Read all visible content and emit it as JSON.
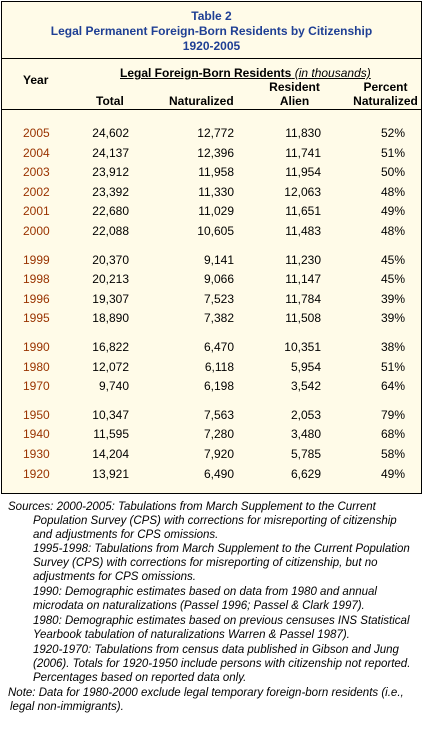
{
  "header": {
    "label": "Table 2",
    "title": "Legal Permanent Foreign-Born Residents by Citizenship",
    "years": "1920-2005"
  },
  "columns": {
    "year": "Year",
    "span_title": "Legal Foreign-Born Residents",
    "span_unit": "(in thousands)",
    "total": "Total",
    "naturalized": "Naturalized",
    "resident_alien": "Resident Alien",
    "percent": "Percent Naturalized"
  },
  "table": {
    "groups": [
      [
        [
          "2005",
          "24,602",
          "12,772",
          "11,830",
          "52%"
        ],
        [
          "2004",
          "24,137",
          "12,396",
          "11,741",
          "51%"
        ],
        [
          "2003",
          "23,912",
          "11,958",
          "11,954",
          "50%"
        ],
        [
          "2002",
          "23,392",
          "11,330",
          "12,063",
          "48%"
        ],
        [
          "2001",
          "22,680",
          "11,029",
          "11,651",
          "49%"
        ],
        [
          "2000",
          "22,088",
          "10,605",
          "11,483",
          "48%"
        ]
      ],
      [
        [
          "1999",
          "20,370",
          "9,141",
          "11,230",
          "45%"
        ],
        [
          "1998",
          "20,213",
          "9,066",
          "11,147",
          "45%"
        ],
        [
          "1996",
          "19,307",
          "7,523",
          "11,784",
          "39%"
        ],
        [
          "1995",
          "18,890",
          "7,382",
          "11,508",
          "39%"
        ]
      ],
      [
        [
          "1990",
          "16,822",
          "6,470",
          "10,351",
          "38%"
        ],
        [
          "1980",
          "12,072",
          "6,118",
          "5,954",
          "51%"
        ],
        [
          "1970",
          "9,740",
          "6,198",
          "3,542",
          "64%"
        ]
      ],
      [
        [
          "1950",
          "10,347",
          "7,563",
          "2,053",
          "79%"
        ],
        [
          "1940",
          "11,595",
          "7,280",
          "3,480",
          "68%"
        ],
        [
          "1930",
          "14,204",
          "7,920",
          "5,785",
          "58%"
        ],
        [
          "1920",
          "13,921",
          "6,490",
          "6,629",
          "49%"
        ]
      ]
    ]
  },
  "sources": {
    "label": "Sources:",
    "items": [
      {
        "period": "2000-2005:",
        "text": "Tabulations from March Supplement to the Current Population Survey (CPS) with corrections for misreporting of citizenship and adjustments for CPS omissions."
      },
      {
        "period": "1995-1998:",
        "text": "Tabulations from March Supplement to the Current Population Survey (CPS) with corrections for misreporting of citizenship, but no adjustments for CPS omissions."
      },
      {
        "period": "1990:",
        "text": "Demographic estimates based on data from 1980 and annual microdata on naturalizations (Passel 1996; Passel & Clark 1997)."
      },
      {
        "period": "1980:",
        "text": "Demographic estimates based on previous censuses INS Statistical Yearbook tabulation of naturalizations Warren & Passel 1987)."
      },
      {
        "period": "1920-1970:",
        "text": "Tabulations from census data published in Gibson and Jung (2006).  Totals for 1920-1950 include persons with citizenship not reported.  Percentages based on reported data only."
      }
    ]
  },
  "note": {
    "label": "Note:",
    "text": "Data for 1980-2000 exclude legal temporary foreign-born residents (i.e., legal non-immigrants)."
  }
}
